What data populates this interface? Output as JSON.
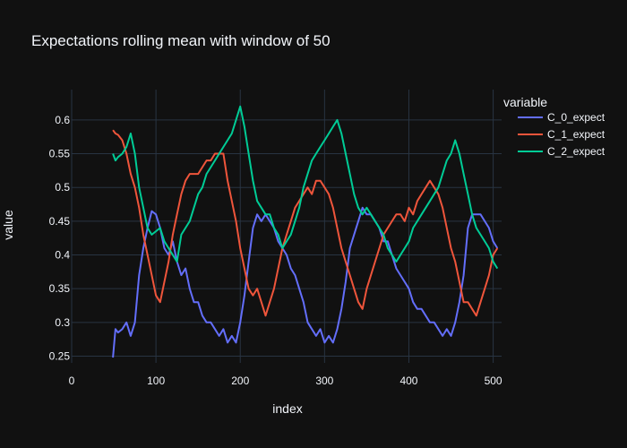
{
  "chart_data": {
    "type": "line",
    "title": "Expectations rolling mean with window of 50",
    "xlabel": "index",
    "ylabel": "value",
    "xlim": [
      0,
      510
    ],
    "ylim": [
      0.24,
      0.645
    ],
    "x_ticks": [
      0,
      100,
      200,
      300,
      400,
      500
    ],
    "x_tick_labels": [
      "0",
      "100",
      "200",
      "300",
      "400",
      "500"
    ],
    "y_ticks": [
      0.25,
      0.3,
      0.35,
      0.4,
      0.45,
      0.5,
      0.55,
      0.6
    ],
    "y_tick_labels": [
      "0.25",
      "0.3",
      "0.35",
      "0.4",
      "0.45",
      "0.5",
      "0.55",
      "0.6"
    ],
    "grid": true,
    "legend": {
      "title": "variable",
      "position": "top-right"
    },
    "series": [
      {
        "name": "C_0_expect",
        "color": "#636efa",
        "x": [
          49,
          52,
          55,
          60,
          65,
          70,
          75,
          80,
          85,
          90,
          95,
          100,
          105,
          110,
          115,
          120,
          125,
          130,
          135,
          140,
          145,
          150,
          155,
          160,
          165,
          170,
          175,
          180,
          185,
          190,
          195,
          200,
          205,
          210,
          215,
          220,
          225,
          230,
          235,
          240,
          245,
          250,
          255,
          260,
          265,
          270,
          275,
          280,
          285,
          290,
          295,
          300,
          305,
          310,
          315,
          320,
          325,
          330,
          335,
          340,
          345,
          350,
          355,
          360,
          365,
          370,
          375,
          380,
          385,
          390,
          395,
          400,
          405,
          410,
          415,
          420,
          425,
          430,
          435,
          440,
          445,
          450,
          455,
          460,
          465,
          470,
          475,
          480,
          485,
          490,
          495,
          500,
          505
        ],
        "y": [
          0.248,
          0.29,
          0.285,
          0.29,
          0.3,
          0.28,
          0.3,
          0.37,
          0.41,
          0.44,
          0.465,
          0.46,
          0.44,
          0.41,
          0.4,
          0.42,
          0.39,
          0.37,
          0.38,
          0.35,
          0.33,
          0.33,
          0.31,
          0.3,
          0.3,
          0.29,
          0.28,
          0.29,
          0.27,
          0.28,
          0.27,
          0.3,
          0.34,
          0.39,
          0.44,
          0.46,
          0.45,
          0.46,
          0.45,
          0.44,
          0.42,
          0.41,
          0.4,
          0.38,
          0.37,
          0.35,
          0.33,
          0.3,
          0.29,
          0.28,
          0.29,
          0.27,
          0.28,
          0.27,
          0.29,
          0.32,
          0.36,
          0.41,
          0.43,
          0.45,
          0.47,
          0.46,
          0.46,
          0.45,
          0.44,
          0.42,
          0.42,
          0.4,
          0.38,
          0.37,
          0.36,
          0.35,
          0.33,
          0.32,
          0.32,
          0.31,
          0.3,
          0.3,
          0.29,
          0.28,
          0.29,
          0.28,
          0.3,
          0.33,
          0.37,
          0.44,
          0.46,
          0.46,
          0.46,
          0.45,
          0.44,
          0.42,
          0.41
        ]
      },
      {
        "name": "C_1_expect",
        "color": "#ef553b",
        "x": [
          49,
          52,
          55,
          60,
          65,
          70,
          75,
          80,
          85,
          90,
          95,
          100,
          105,
          110,
          115,
          120,
          125,
          130,
          135,
          140,
          145,
          150,
          155,
          160,
          165,
          170,
          175,
          180,
          185,
          190,
          195,
          200,
          205,
          210,
          215,
          220,
          225,
          230,
          235,
          240,
          245,
          250,
          255,
          260,
          265,
          270,
          275,
          280,
          285,
          290,
          295,
          300,
          305,
          310,
          315,
          320,
          325,
          330,
          335,
          340,
          345,
          350,
          355,
          360,
          365,
          370,
          375,
          380,
          385,
          390,
          395,
          400,
          405,
          410,
          415,
          420,
          425,
          430,
          435,
          440,
          445,
          450,
          455,
          460,
          465,
          470,
          475,
          480,
          485,
          490,
          495,
          500,
          505
        ],
        "y": [
          0.585,
          0.58,
          0.578,
          0.57,
          0.55,
          0.52,
          0.5,
          0.47,
          0.43,
          0.4,
          0.37,
          0.34,
          0.33,
          0.36,
          0.39,
          0.43,
          0.46,
          0.49,
          0.51,
          0.52,
          0.52,
          0.52,
          0.53,
          0.54,
          0.54,
          0.55,
          0.55,
          0.55,
          0.51,
          0.48,
          0.45,
          0.41,
          0.38,
          0.35,
          0.34,
          0.35,
          0.33,
          0.31,
          0.33,
          0.35,
          0.38,
          0.41,
          0.43,
          0.45,
          0.47,
          0.48,
          0.49,
          0.5,
          0.49,
          0.51,
          0.51,
          0.5,
          0.49,
          0.47,
          0.44,
          0.41,
          0.39,
          0.37,
          0.35,
          0.33,
          0.32,
          0.35,
          0.37,
          0.39,
          0.41,
          0.43,
          0.44,
          0.45,
          0.46,
          0.46,
          0.45,
          0.47,
          0.46,
          0.48,
          0.49,
          0.5,
          0.51,
          0.5,
          0.49,
          0.47,
          0.44,
          0.41,
          0.39,
          0.36,
          0.33,
          0.33,
          0.32,
          0.31,
          0.33,
          0.35,
          0.37,
          0.4,
          0.41
        ]
      },
      {
        "name": "C_2_expect",
        "color": "#00cc96",
        "x": [
          49,
          52,
          55,
          60,
          65,
          70,
          75,
          80,
          85,
          90,
          95,
          100,
          105,
          110,
          115,
          120,
          125,
          130,
          135,
          140,
          145,
          150,
          155,
          160,
          165,
          170,
          175,
          180,
          185,
          190,
          195,
          200,
          205,
          210,
          215,
          220,
          225,
          230,
          235,
          240,
          245,
          250,
          255,
          260,
          265,
          270,
          275,
          280,
          285,
          290,
          295,
          300,
          305,
          310,
          315,
          320,
          325,
          330,
          335,
          340,
          345,
          350,
          355,
          360,
          365,
          370,
          375,
          380,
          385,
          390,
          395,
          400,
          405,
          410,
          415,
          420,
          425,
          430,
          435,
          440,
          445,
          450,
          455,
          460,
          465,
          470,
          475,
          480,
          485,
          490,
          495,
          500,
          505
        ],
        "y": [
          0.55,
          0.54,
          0.545,
          0.55,
          0.56,
          0.58,
          0.55,
          0.5,
          0.47,
          0.44,
          0.43,
          0.435,
          0.44,
          0.42,
          0.41,
          0.4,
          0.39,
          0.43,
          0.44,
          0.45,
          0.47,
          0.49,
          0.5,
          0.52,
          0.53,
          0.54,
          0.55,
          0.56,
          0.57,
          0.58,
          0.6,
          0.62,
          0.59,
          0.55,
          0.51,
          0.48,
          0.47,
          0.46,
          0.46,
          0.44,
          0.43,
          0.41,
          0.42,
          0.43,
          0.45,
          0.47,
          0.5,
          0.52,
          0.54,
          0.55,
          0.56,
          0.57,
          0.58,
          0.59,
          0.6,
          0.58,
          0.55,
          0.52,
          0.49,
          0.47,
          0.46,
          0.47,
          0.46,
          0.45,
          0.44,
          0.43,
          0.41,
          0.4,
          0.39,
          0.4,
          0.41,
          0.42,
          0.44,
          0.45,
          0.46,
          0.47,
          0.48,
          0.49,
          0.5,
          0.52,
          0.54,
          0.55,
          0.57,
          0.55,
          0.52,
          0.49,
          0.46,
          0.44,
          0.43,
          0.42,
          0.41,
          0.39,
          0.38
        ]
      }
    ]
  }
}
